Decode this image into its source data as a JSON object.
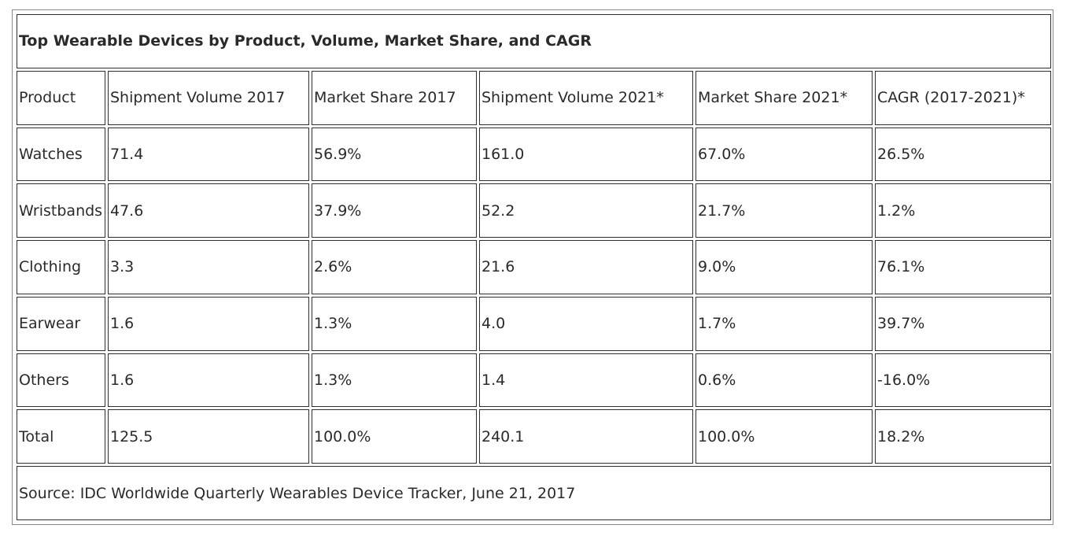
{
  "chart_data": {
    "type": "table",
    "title": "Top Wearable Devices by Product, Volume, Market Share, and CAGR",
    "columns": [
      "Product",
      "Shipment Volume 2017",
      "Market Share 2017",
      "Shipment Volume 2021*",
      "Market Share 2021*",
      "CAGR (2017-2021)*"
    ],
    "rows": [
      [
        "Watches",
        "71.4",
        "56.9%",
        "161.0",
        "67.0%",
        "26.5%"
      ],
      [
        "Wristbands",
        "47.6",
        "37.9%",
        "52.2",
        "21.7%",
        "1.2%"
      ],
      [
        "Clothing",
        "3.3",
        "2.6%",
        "21.6",
        "9.0%",
        "76.1%"
      ],
      [
        "Earwear",
        "1.6",
        "1.3%",
        "4.0",
        "1.7%",
        "39.7%"
      ],
      [
        "Others",
        "1.6",
        "1.3%",
        "1.4",
        "0.6%",
        "-16.0%"
      ]
    ],
    "total": [
      "Total",
      "125.5",
      "100.0%",
      "240.1",
      "100.0%",
      "18.2%"
    ],
    "source": "Source: IDC Worldwide Quarterly Wearables Device Tracker, June 21, 2017"
  }
}
